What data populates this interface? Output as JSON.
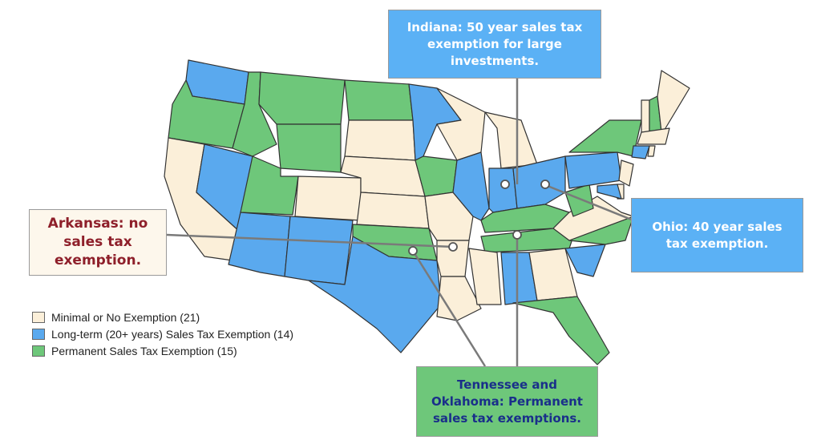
{
  "colors": {
    "minimal": "#fbefd9",
    "long_term": "#5aa9ee",
    "permanent": "#6ec77a",
    "border": "#333333"
  },
  "legend": {
    "items": [
      {
        "label": "Minimal or No Exemption (21)",
        "color": "#fbefd9"
      },
      {
        "label": "Long-term (20+ years) Sales Tax Exemption (14)",
        "color": "#5aa9ee"
      },
      {
        "label": "Permanent Sales Tax Exemption (15)",
        "color": "#6ec77a"
      }
    ]
  },
  "callouts": {
    "indiana": "Indiana: 50 year sales tax exemption for large investments.",
    "ohio": "Ohio: 40 year sales tax exemption.",
    "arkansas": "Arkansas: no sales tax exemption.",
    "tennessee_oklahoma": "Tennessee and Oklahoma: Permanent sales tax exemptions."
  }
}
